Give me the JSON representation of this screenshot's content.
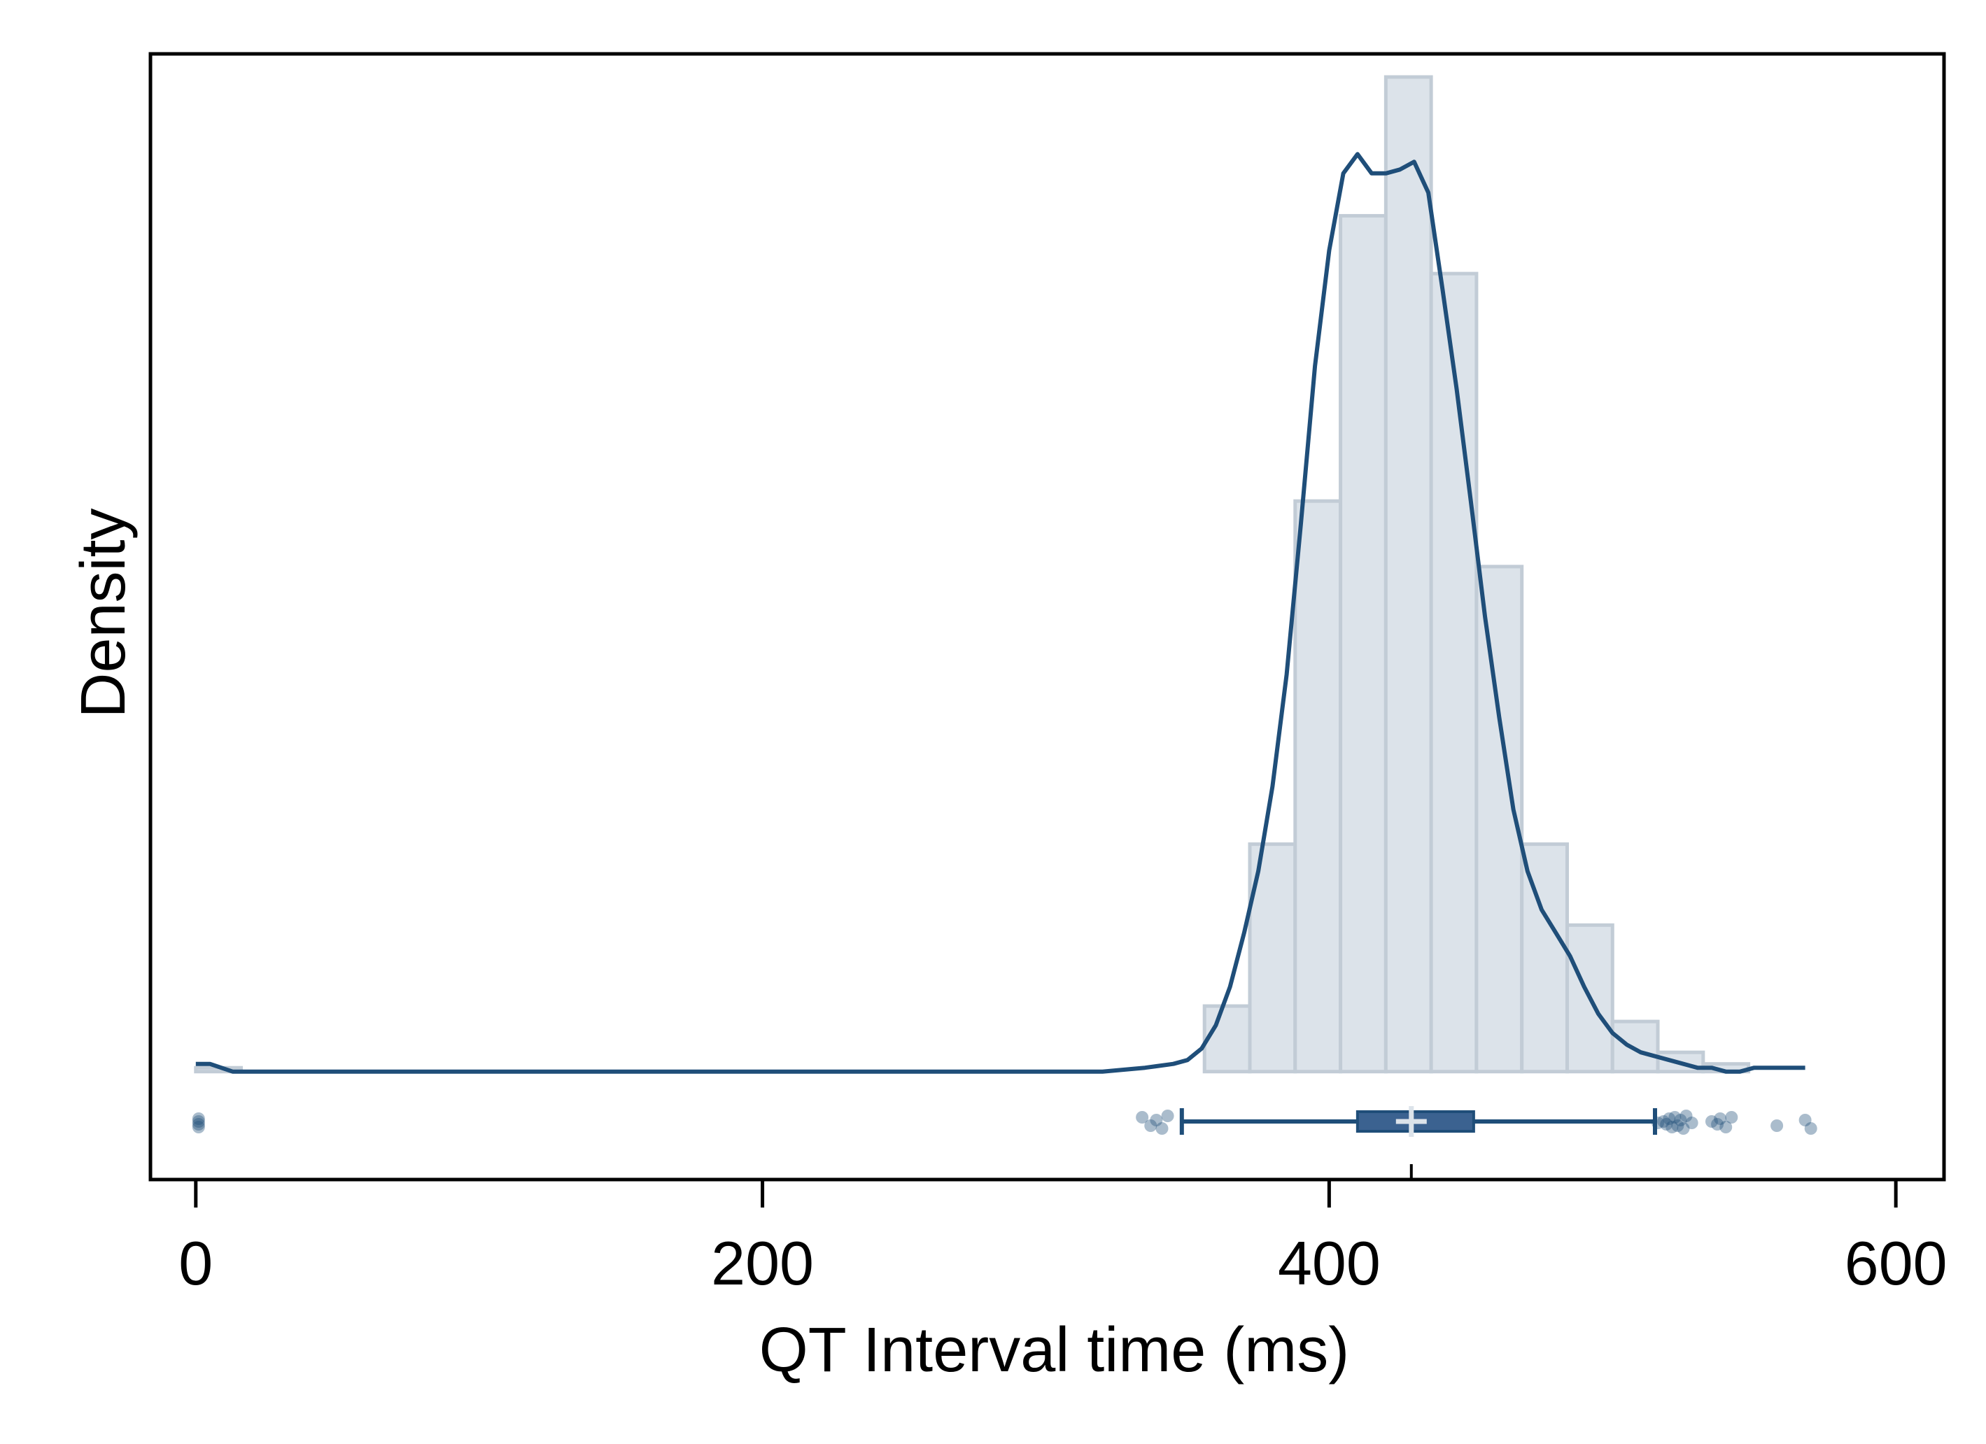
{
  "chart_data": {
    "type": "histogram",
    "xlabel": "QT Interval time (ms)",
    "ylabel": "Density",
    "xlim": [
      -16,
      617
    ],
    "ylim": [
      -0.0028,
      0.0264
    ],
    "xticks": [
      0,
      200,
      400,
      600
    ],
    "xtick_labels": [
      "0",
      "200",
      "400",
      "600"
    ],
    "y_tick_labels_shown": false,
    "grid": false,
    "colors": {
      "bar_fill": "#dce3ea",
      "bar_stroke": "#c2ccd6",
      "line": "#1f4e79",
      "box_fill": "#3b6290",
      "median_tick": "#dce3ea",
      "outlier": "#1f4e79"
    },
    "histogram": {
      "bin_width": 16,
      "bins": [
        {
          "x_start": 0,
          "x_end": 16,
          "density": 0.0001
        },
        {
          "x_start": 356,
          "x_end": 372,
          "density": 0.0017
        },
        {
          "x_start": 372,
          "x_end": 388,
          "density": 0.0059
        },
        {
          "x_start": 388,
          "x_end": 404,
          "density": 0.0148
        },
        {
          "x_start": 404,
          "x_end": 420,
          "density": 0.0222
        },
        {
          "x_start": 420,
          "x_end": 436,
          "density": 0.0258
        },
        {
          "x_start": 436,
          "x_end": 452,
          "density": 0.0207
        },
        {
          "x_start": 452,
          "x_end": 468,
          "density": 0.0131
        },
        {
          "x_start": 468,
          "x_end": 484,
          "density": 0.0059
        },
        {
          "x_start": 484,
          "x_end": 500,
          "density": 0.0038
        },
        {
          "x_start": 500,
          "x_end": 516,
          "density": 0.0013
        },
        {
          "x_start": 516,
          "x_end": 532,
          "density": 0.0005
        },
        {
          "x_start": 532,
          "x_end": 548,
          "density": 0.0002
        }
      ]
    },
    "kde": {
      "x": [
        0,
        5,
        13,
        50,
        100,
        200,
        320,
        335,
        345,
        350,
        355,
        360,
        365,
        370,
        375,
        380,
        385,
        390,
        395,
        400,
        405,
        410,
        415,
        420,
        425,
        430,
        435,
        440,
        445,
        450,
        455,
        460,
        465,
        470,
        475,
        480,
        485,
        490,
        495,
        500,
        505,
        510,
        515,
        520,
        525,
        530,
        535,
        540,
        545,
        550,
        555,
        560,
        568
      ],
      "y": [
        0.0002,
        0.0002,
        0.0,
        0.0,
        0.0,
        0.0,
        0.0,
        0.0001,
        0.0002,
        0.0003,
        0.0006,
        0.0012,
        0.0022,
        0.0036,
        0.0052,
        0.0074,
        0.0103,
        0.0142,
        0.0183,
        0.0213,
        0.0233,
        0.0238,
        0.0233,
        0.0233,
        0.0234,
        0.0236,
        0.0228,
        0.0203,
        0.0177,
        0.0148,
        0.0118,
        0.0092,
        0.0068,
        0.0052,
        0.0042,
        0.0036,
        0.003,
        0.0022,
        0.0015,
        0.001,
        0.0007,
        0.0005,
        0.0004,
        0.0003,
        0.0002,
        0.0001,
        0.0001,
        0.0,
        0.0,
        0.0001,
        0.0001,
        0.0001,
        0.0001
      ]
    },
    "boxplot": {
      "whisker_low": 348,
      "q1": 410,
      "median": 429,
      "mean": 429,
      "q3": 451,
      "whisker_high": 515,
      "outliers": [
        1,
        1,
        1,
        1,
        334,
        337,
        339,
        341,
        343,
        516,
        518,
        519,
        520,
        521,
        522,
        523,
        524,
        525,
        526,
        528,
        535,
        537,
        538,
        540,
        542,
        558,
        568,
        570
      ]
    }
  }
}
